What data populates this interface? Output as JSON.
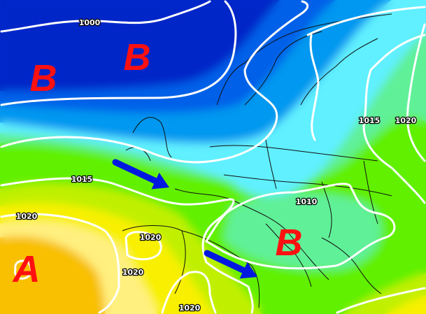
{
  "map": {
    "pressure_centers": [
      {
        "letter": "B",
        "type": "low"
      },
      {
        "letter": "B",
        "type": "low"
      },
      {
        "letter": "A",
        "type": "high"
      },
      {
        "letter": "B",
        "type": "low"
      }
    ],
    "isobar_labels": [
      "1000",
      "1015",
      "1020",
      "1020",
      "1020",
      "1020",
      "1010",
      "1015",
      "1020"
    ],
    "arrows": [
      {
        "color": "#0018e0"
      },
      {
        "color": "#0018e0"
      }
    ],
    "colors": {
      "band_deep_blue": "#0028c8",
      "band_blue": "#0060e8",
      "band_mid_blue": "#0098f0",
      "band_cyan": "#60f0ff",
      "band_mint": "#60f098",
      "band_green": "#60f000",
      "band_yellow_green": "#c0f000",
      "band_yellow": "#f8f000",
      "band_light_yellow": "#fff080",
      "band_orange": "#f8c000",
      "isobar": "#ffffff",
      "center_letter": "#ff1010"
    }
  }
}
